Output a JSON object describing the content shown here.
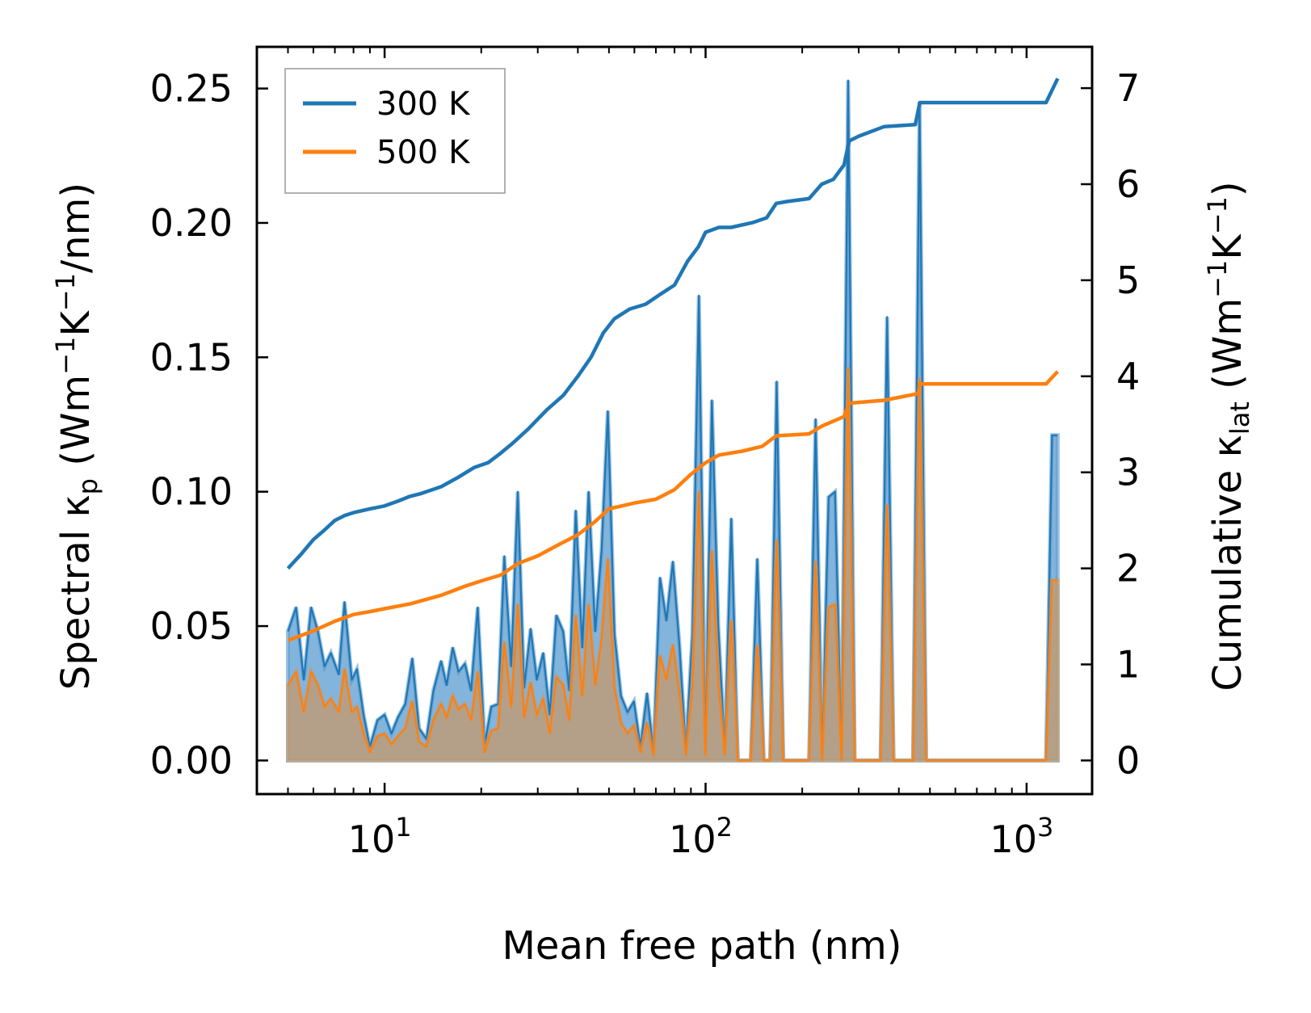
{
  "chart_data": {
    "type": "line",
    "xscale": "log",
    "xlabel": "Mean free path (nm)",
    "ylabel_left": {
      "main": "Spectral κ",
      "sub": "p",
      "unit_pre": " (Wm",
      "sup1": "−1",
      "mid": "K",
      "sup2": "−1",
      "unit_post": "/nm)"
    },
    "ylabel_right": {
      "main": "Cumulative κ",
      "sub": "lat",
      "unit_pre": " (Wm",
      "sup1": "−1",
      "mid": "K",
      "sup2": "−1",
      "unit_post": ")"
    },
    "xlim": [
      4.0,
      1600
    ],
    "ylim_left": [
      -0.0125,
      0.2655
    ],
    "ylim_right": [
      -0.35,
      7.43
    ],
    "x_ticks": [
      {
        "value": 10,
        "base": "10",
        "exp": "1"
      },
      {
        "value": 100,
        "base": "10",
        "exp": "2"
      },
      {
        "value": 1000,
        "base": "10",
        "exp": "3"
      }
    ],
    "y_left_ticks": [
      0.0,
      0.05,
      0.1,
      0.15,
      0.2,
      0.25
    ],
    "y_left_tick_labels": [
      "0.00",
      "0.05",
      "0.10",
      "0.15",
      "0.20",
      "0.25"
    ],
    "y_right_ticks": [
      0,
      1,
      2,
      3,
      4,
      5,
      6,
      7
    ],
    "y_right_tick_labels": [
      "0",
      "1",
      "2",
      "3",
      "4",
      "5",
      "6",
      "7"
    ],
    "legend": {
      "position": "upper-left",
      "entries": [
        "300 K",
        "500 K"
      ]
    },
    "colors": {
      "series_300": "#1f77b4",
      "series_500": "#ff7f0e",
      "fill_300": "#5a9bd0",
      "fill_500": "#c49a6c"
    },
    "spectral": [
      {
        "name": "300 K",
        "points": [
          [
            5.0,
            0.048
          ],
          [
            5.3,
            0.057
          ],
          [
            5.6,
            0.03
          ],
          [
            5.9,
            0.057
          ],
          [
            6.2,
            0.048
          ],
          [
            6.5,
            0.035
          ],
          [
            6.8,
            0.04
          ],
          [
            7.2,
            0.032
          ],
          [
            7.5,
            0.059
          ],
          [
            7.9,
            0.03
          ],
          [
            8.2,
            0.034
          ],
          [
            8.6,
            0.017
          ],
          [
            9.0,
            0.005
          ],
          [
            9.5,
            0.015
          ],
          [
            10.0,
            0.017
          ],
          [
            10.5,
            0.01
          ],
          [
            11.0,
            0.016
          ],
          [
            11.6,
            0.021
          ],
          [
            12.2,
            0.038
          ],
          [
            12.8,
            0.012
          ],
          [
            13.5,
            0.008
          ],
          [
            14.2,
            0.026
          ],
          [
            15.0,
            0.037
          ],
          [
            15.6,
            0.028
          ],
          [
            16.3,
            0.042
          ],
          [
            17.0,
            0.033
          ],
          [
            17.8,
            0.036
          ],
          [
            18.6,
            0.026
          ],
          [
            19.5,
            0.057
          ],
          [
            20.5,
            0.006
          ],
          [
            21.5,
            0.02
          ],
          [
            22.6,
            0.021
          ],
          [
            23.6,
            0.076
          ],
          [
            24.8,
            0.035
          ],
          [
            26.0,
            0.1
          ],
          [
            27.2,
            0.027
          ],
          [
            28.5,
            0.049
          ],
          [
            29.8,
            0.03
          ],
          [
            31.2,
            0.04
          ],
          [
            32.7,
            0.017
          ],
          [
            34.3,
            0.054
          ],
          [
            36.0,
            0.048
          ],
          [
            37.6,
            0.026
          ],
          [
            39.4,
            0.093
          ],
          [
            41.3,
            0.042
          ],
          [
            43.2,
            0.1
          ],
          [
            45.3,
            0.048
          ],
          [
            47.4,
            0.078
          ],
          [
            49.6,
            0.13
          ],
          [
            52.0,
            0.047
          ],
          [
            54.5,
            0.024
          ],
          [
            57.1,
            0.018
          ],
          [
            59.8,
            0.022
          ],
          [
            62.7,
            0.005
          ],
          [
            65.7,
            0.025
          ],
          [
            68.8,
            0.003
          ],
          [
            72.1,
            0.068
          ],
          [
            75.5,
            0.052
          ],
          [
            79.1,
            0.074
          ],
          [
            82.9,
            0.043
          ],
          [
            86.8,
            0.004
          ],
          [
            91.0,
            0.047
          ],
          [
            95.3,
            0.173
          ],
          [
            99.8,
            0.004
          ],
          [
            104.6,
            0.134
          ],
          [
            109.5,
            0.05
          ],
          [
            114.8,
            0.004
          ],
          [
            120.2,
            0.09
          ],
          [
            126.0,
            0.0
          ],
          [
            132.0,
            0.0
          ],
          [
            138.3,
            0.0
          ],
          [
            144.9,
            0.075
          ],
          [
            151.8,
            0.0
          ],
          [
            159.0,
            0.0
          ],
          [
            166.5,
            0.141
          ],
          [
            174.5,
            0.0
          ],
          [
            182.8,
            0.0
          ],
          [
            191.5,
            0.0
          ],
          [
            200.6,
            0.0
          ],
          [
            210.2,
            0.0
          ],
          [
            220.2,
            0.127
          ],
          [
            230.7,
            0.0
          ],
          [
            241.7,
            0.098
          ],
          [
            253.2,
            0.1
          ],
          [
            265.3,
            0.0
          ],
          [
            278.0,
            0.253
          ],
          [
            291.2,
            0.0
          ],
          [
            305.1,
            0.0
          ],
          [
            319.7,
            0.0
          ],
          [
            335.0,
            0.0
          ],
          [
            351.0,
            0.0
          ],
          [
            367.7,
            0.165
          ],
          [
            385.2,
            0.0
          ],
          [
            403.6,
            0.0
          ],
          [
            422.9,
            0.0
          ],
          [
            443.1,
            0.0
          ],
          [
            464.2,
            0.245
          ],
          [
            486.4,
            0.0
          ],
          [
            600.0,
            0.0
          ],
          [
            800.0,
            0.0
          ],
          [
            1000.0,
            0.0
          ],
          [
            1150.0,
            0.0
          ],
          [
            1200.0,
            0.121
          ],
          [
            1250.0,
            0.121
          ]
        ]
      },
      {
        "name": "500 K",
        "points": [
          [
            5.0,
            0.028
          ],
          [
            5.3,
            0.033
          ],
          [
            5.6,
            0.018
          ],
          [
            5.9,
            0.033
          ],
          [
            6.2,
            0.028
          ],
          [
            6.5,
            0.02
          ],
          [
            6.8,
            0.023
          ],
          [
            7.2,
            0.018
          ],
          [
            7.5,
            0.034
          ],
          [
            7.9,
            0.018
          ],
          [
            8.2,
            0.02
          ],
          [
            8.6,
            0.01
          ],
          [
            9.0,
            0.003
          ],
          [
            9.5,
            0.009
          ],
          [
            10.0,
            0.01
          ],
          [
            10.5,
            0.006
          ],
          [
            11.0,
            0.009
          ],
          [
            11.6,
            0.012
          ],
          [
            12.2,
            0.022
          ],
          [
            12.8,
            0.007
          ],
          [
            13.5,
            0.005
          ],
          [
            14.2,
            0.015
          ],
          [
            15.0,
            0.021
          ],
          [
            15.6,
            0.016
          ],
          [
            16.3,
            0.024
          ],
          [
            17.0,
            0.019
          ],
          [
            17.8,
            0.021
          ],
          [
            18.6,
            0.015
          ],
          [
            19.5,
            0.033
          ],
          [
            20.5,
            0.003
          ],
          [
            21.5,
            0.011
          ],
          [
            22.6,
            0.012
          ],
          [
            23.6,
            0.044
          ],
          [
            24.8,
            0.02
          ],
          [
            26.0,
            0.058
          ],
          [
            27.2,
            0.016
          ],
          [
            28.5,
            0.029
          ],
          [
            29.8,
            0.017
          ],
          [
            31.2,
            0.023
          ],
          [
            32.7,
            0.01
          ],
          [
            34.3,
            0.031
          ],
          [
            36.0,
            0.028
          ],
          [
            37.6,
            0.015
          ],
          [
            39.4,
            0.054
          ],
          [
            41.3,
            0.024
          ],
          [
            43.2,
            0.058
          ],
          [
            45.3,
            0.028
          ],
          [
            47.4,
            0.045
          ],
          [
            49.6,
            0.075
          ],
          [
            52.0,
            0.027
          ],
          [
            54.5,
            0.014
          ],
          [
            57.1,
            0.01
          ],
          [
            59.8,
            0.013
          ],
          [
            62.7,
            0.003
          ],
          [
            65.7,
            0.014
          ],
          [
            68.8,
            0.002
          ],
          [
            72.1,
            0.039
          ],
          [
            75.5,
            0.03
          ],
          [
            79.1,
            0.043
          ],
          [
            82.9,
            0.025
          ],
          [
            86.8,
            0.002
          ],
          [
            91.0,
            0.027
          ],
          [
            95.3,
            0.1
          ],
          [
            99.8,
            0.002
          ],
          [
            104.6,
            0.078
          ],
          [
            109.5,
            0.029
          ],
          [
            114.8,
            0.002
          ],
          [
            120.2,
            0.052
          ],
          [
            126.0,
            0.0
          ],
          [
            132.0,
            0.0
          ],
          [
            138.3,
            0.0
          ],
          [
            144.9,
            0.043
          ],
          [
            151.8,
            0.0
          ],
          [
            159.0,
            0.0
          ],
          [
            166.5,
            0.082
          ],
          [
            174.5,
            0.0
          ],
          [
            182.8,
            0.0
          ],
          [
            191.5,
            0.0
          ],
          [
            200.6,
            0.0
          ],
          [
            210.2,
            0.0
          ],
          [
            220.2,
            0.074
          ],
          [
            230.7,
            0.0
          ],
          [
            241.7,
            0.057
          ],
          [
            253.2,
            0.058
          ],
          [
            265.3,
            0.0
          ],
          [
            278.0,
            0.146
          ],
          [
            291.2,
            0.0
          ],
          [
            305.1,
            0.0
          ],
          [
            319.7,
            0.0
          ],
          [
            335.0,
            0.0
          ],
          [
            351.0,
            0.0
          ],
          [
            367.7,
            0.095
          ],
          [
            385.2,
            0.0
          ],
          [
            403.6,
            0.0
          ],
          [
            422.9,
            0.0
          ],
          [
            443.1,
            0.0
          ],
          [
            464.2,
            0.142
          ],
          [
            486.4,
            0.0
          ],
          [
            600.0,
            0.0
          ],
          [
            800.0,
            0.0
          ],
          [
            1000.0,
            0.0
          ],
          [
            1150.0,
            0.0
          ],
          [
            1200.0,
            0.067
          ],
          [
            1250.0,
            0.067
          ]
        ]
      }
    ],
    "cumulative": [
      {
        "name": "300 K",
        "points": [
          [
            5.0,
            2.0
          ],
          [
            5.5,
            2.15
          ],
          [
            6.0,
            2.3
          ],
          [
            6.5,
            2.4
          ],
          [
            7.0,
            2.5
          ],
          [
            7.5,
            2.55
          ],
          [
            8.0,
            2.58
          ],
          [
            9.0,
            2.62
          ],
          [
            10.0,
            2.65
          ],
          [
            11.0,
            2.7
          ],
          [
            12.0,
            2.75
          ],
          [
            13.0,
            2.78
          ],
          [
            15.0,
            2.85
          ],
          [
            17.0,
            2.95
          ],
          [
            19.0,
            3.05
          ],
          [
            21.0,
            3.1
          ],
          [
            23.0,
            3.2
          ],
          [
            25.0,
            3.3
          ],
          [
            28.0,
            3.45
          ],
          [
            32.0,
            3.65
          ],
          [
            36.0,
            3.8
          ],
          [
            40.0,
            4.0
          ],
          [
            44.0,
            4.2
          ],
          [
            48.0,
            4.45
          ],
          [
            52.0,
            4.6
          ],
          [
            58.0,
            4.7
          ],
          [
            65.0,
            4.75
          ],
          [
            72.0,
            4.85
          ],
          [
            80.0,
            4.95
          ],
          [
            88.0,
            5.2
          ],
          [
            95.0,
            5.35
          ],
          [
            100.0,
            5.5
          ],
          [
            110.0,
            5.55
          ],
          [
            120.0,
            5.55
          ],
          [
            140.0,
            5.6
          ],
          [
            155.0,
            5.65
          ],
          [
            166.0,
            5.8
          ],
          [
            180.0,
            5.82
          ],
          [
            210.0,
            5.85
          ],
          [
            230.0,
            6.0
          ],
          [
            250.0,
            6.05
          ],
          [
            270.0,
            6.2
          ],
          [
            280.0,
            6.45
          ],
          [
            300.0,
            6.5
          ],
          [
            360.0,
            6.6
          ],
          [
            450.0,
            6.62
          ],
          [
            465.0,
            6.85
          ],
          [
            800.0,
            6.85
          ],
          [
            1150.0,
            6.85
          ],
          [
            1250.0,
            7.1
          ]
        ]
      },
      {
        "name": "500 K",
        "points": [
          [
            5.0,
            1.25
          ],
          [
            6.0,
            1.35
          ],
          [
            7.0,
            1.45
          ],
          [
            8.0,
            1.52
          ],
          [
            9.0,
            1.55
          ],
          [
            10.0,
            1.58
          ],
          [
            12.0,
            1.63
          ],
          [
            15.0,
            1.72
          ],
          [
            18.0,
            1.82
          ],
          [
            20.0,
            1.87
          ],
          [
            23.0,
            1.93
          ],
          [
            26.0,
            2.05
          ],
          [
            30.0,
            2.13
          ],
          [
            35.0,
            2.25
          ],
          [
            40.0,
            2.35
          ],
          [
            45.0,
            2.48
          ],
          [
            50.0,
            2.62
          ],
          [
            60.0,
            2.68
          ],
          [
            70.0,
            2.72
          ],
          [
            80.0,
            2.82
          ],
          [
            90.0,
            2.98
          ],
          [
            100.0,
            3.1
          ],
          [
            110.0,
            3.18
          ],
          [
            130.0,
            3.22
          ],
          [
            150.0,
            3.27
          ],
          [
            166.0,
            3.38
          ],
          [
            210.0,
            3.4
          ],
          [
            230.0,
            3.48
          ],
          [
            270.0,
            3.58
          ],
          [
            280.0,
            3.72
          ],
          [
            360.0,
            3.75
          ],
          [
            460.0,
            3.82
          ],
          [
            465.0,
            3.92
          ],
          [
            1150.0,
            3.92
          ],
          [
            1250.0,
            4.05
          ]
        ]
      }
    ]
  }
}
